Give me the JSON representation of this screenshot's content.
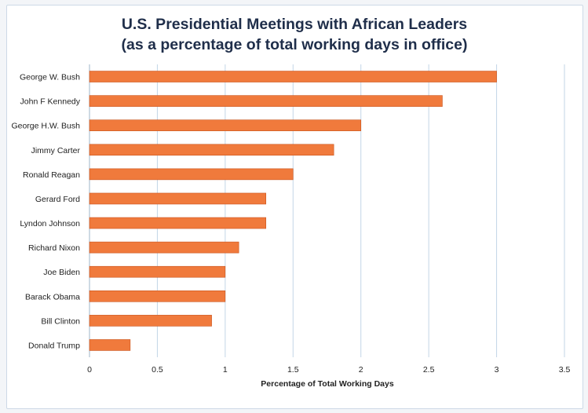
{
  "chart_data": {
    "type": "bar",
    "orientation": "horizontal",
    "title": "U.S. Presidential Meetings with African Leaders",
    "subtitle": "(as a percentage of total working days in office)",
    "xlabel": "Percentage of Total Working Days",
    "ylabel": "",
    "xlim": [
      0,
      3.5
    ],
    "x_ticks": [
      0,
      0.5,
      1,
      1.5,
      2,
      2.5,
      3,
      3.5
    ],
    "x_tick_labels": [
      "0",
      "0.5",
      "1",
      "1.5",
      "2",
      "2.5",
      "3",
      "3.5"
    ],
    "grid": true,
    "legend": "none",
    "categories": [
      "George W. Bush",
      "John F Kennedy",
      "George H.W. Bush",
      "Jimmy Carter",
      "Ronald Reagan",
      "Gerard Ford",
      "Lyndon Johnson",
      "Richard Nixon",
      "Joe Biden",
      "Barack Obama",
      "Bill Clinton",
      "Donald Trump"
    ],
    "values": [
      3.0,
      2.6,
      2.0,
      1.8,
      1.5,
      1.3,
      1.3,
      1.1,
      1.0,
      1.0,
      0.9,
      0.3
    ],
    "bar_color": "#f07a3c",
    "bar_edge_color": "#c9531c",
    "grid_color": "#c3d6e6"
  }
}
